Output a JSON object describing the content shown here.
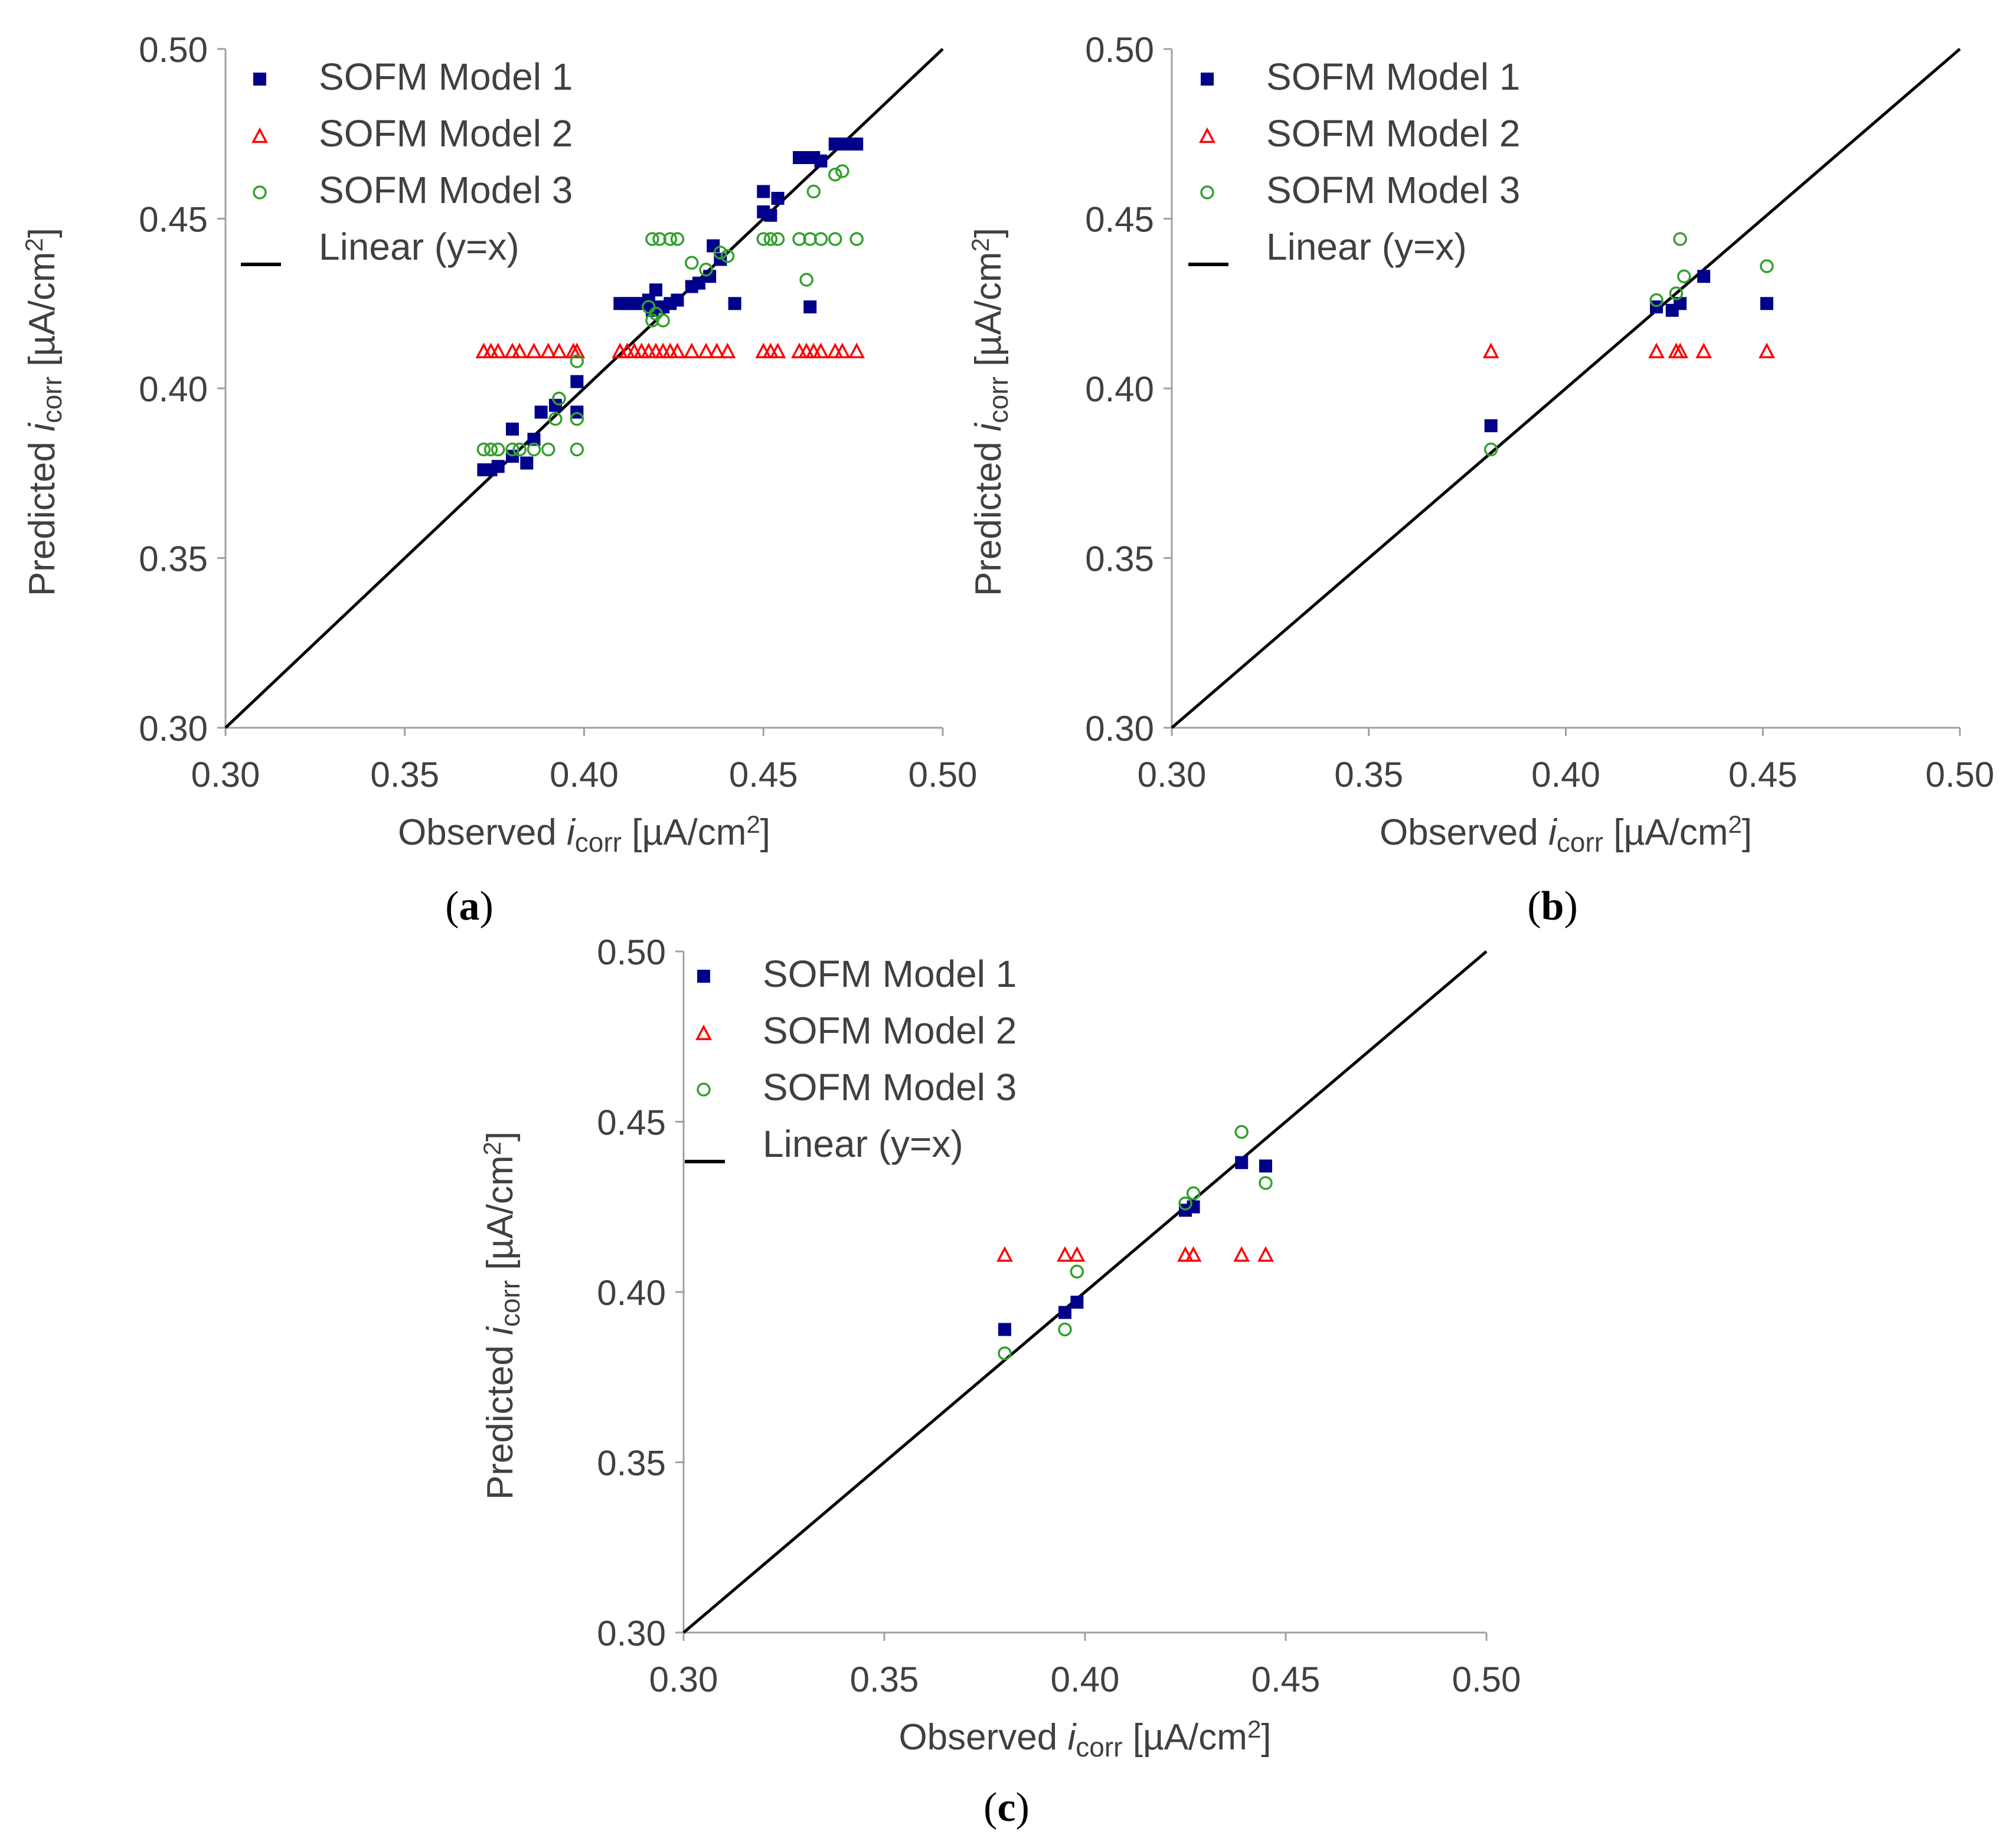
{
  "chart_data": [
    {
      "panel_label": "a",
      "type": "scatter",
      "xlabel": "Observed",
      "ylabel": "Predicted",
      "axis_symbol": "i",
      "axis_subscript": "corr",
      "axis_unit": "[µA/cm",
      "axis_unit_sup": "2",
      "axis_unit_close": "]",
      "xlim": [
        0.3,
        0.5
      ],
      "ylim": [
        0.3,
        0.5
      ],
      "x_ticks": [
        "0.30",
        "0.35",
        "0.40",
        "0.45",
        "0.50"
      ],
      "y_ticks": [
        "0.30",
        "0.35",
        "0.40",
        "0.45",
        "0.50"
      ],
      "legend": [
        "SOFM Model 1",
        "SOFM Model 2",
        "SOFM Model 3",
        "Linear (y=x)"
      ],
      "legend_position": "top-left",
      "reference_line": [
        [
          0.3,
          0.3
        ],
        [
          0.5,
          0.5
        ]
      ],
      "series": [
        {
          "name": "SOFM Model 1",
          "marker": "square",
          "color": "#00008b",
          "points": [
            [
              0.372,
              0.376
            ],
            [
              0.374,
              0.376
            ],
            [
              0.376,
              0.377
            ],
            [
              0.38,
              0.38
            ],
            [
              0.38,
              0.388
            ],
            [
              0.384,
              0.378
            ],
            [
              0.386,
              0.385
            ],
            [
              0.388,
              0.393
            ],
            [
              0.392,
              0.395
            ],
            [
              0.398,
              0.393
            ],
            [
              0.398,
              0.402
            ],
            [
              0.41,
              0.425
            ],
            [
              0.412,
              0.425
            ],
            [
              0.414,
              0.425
            ],
            [
              0.416,
              0.425
            ],
            [
              0.418,
              0.426
            ],
            [
              0.419,
              0.423
            ],
            [
              0.42,
              0.424
            ],
            [
              0.42,
              0.429
            ],
            [
              0.422,
              0.424
            ],
            [
              0.424,
              0.425
            ],
            [
              0.426,
              0.426
            ],
            [
              0.43,
              0.43
            ],
            [
              0.432,
              0.431
            ],
            [
              0.435,
              0.433
            ],
            [
              0.436,
              0.442
            ],
            [
              0.438,
              0.438
            ],
            [
              0.442,
              0.425
            ],
            [
              0.45,
              0.452
            ],
            [
              0.45,
              0.458
            ],
            [
              0.452,
              0.451
            ],
            [
              0.454,
              0.456
            ],
            [
              0.46,
              0.468
            ],
            [
              0.462,
              0.468
            ],
            [
              0.463,
              0.424
            ],
            [
              0.464,
              0.468
            ],
            [
              0.466,
              0.467
            ],
            [
              0.47,
              0.472
            ],
            [
              0.472,
              0.472
            ],
            [
              0.474,
              0.472
            ],
            [
              0.476,
              0.472
            ]
          ]
        },
        {
          "name": "SOFM Model 2",
          "marker": "triangle",
          "color": "#ff0000",
          "points": [
            [
              0.372,
              0.411
            ],
            [
              0.374,
              0.411
            ],
            [
              0.376,
              0.411
            ],
            [
              0.38,
              0.411
            ],
            [
              0.382,
              0.411
            ],
            [
              0.386,
              0.411
            ],
            [
              0.39,
              0.411
            ],
            [
              0.393,
              0.411
            ],
            [
              0.397,
              0.411
            ],
            [
              0.398,
              0.411
            ],
            [
              0.41,
              0.411
            ],
            [
              0.412,
              0.411
            ],
            [
              0.414,
              0.411
            ],
            [
              0.416,
              0.411
            ],
            [
              0.418,
              0.411
            ],
            [
              0.42,
              0.411
            ],
            [
              0.422,
              0.411
            ],
            [
              0.424,
              0.411
            ],
            [
              0.426,
              0.411
            ],
            [
              0.43,
              0.411
            ],
            [
              0.434,
              0.411
            ],
            [
              0.437,
              0.411
            ],
            [
              0.44,
              0.411
            ],
            [
              0.45,
              0.411
            ],
            [
              0.452,
              0.411
            ],
            [
              0.454,
              0.411
            ],
            [
              0.46,
              0.411
            ],
            [
              0.462,
              0.411
            ],
            [
              0.464,
              0.411
            ],
            [
              0.466,
              0.411
            ],
            [
              0.47,
              0.411
            ],
            [
              0.472,
              0.411
            ],
            [
              0.476,
              0.411
            ]
          ]
        },
        {
          "name": "SOFM Model 3",
          "marker": "circle",
          "color": "#33a02c",
          "points": [
            [
              0.372,
              0.382
            ],
            [
              0.374,
              0.382
            ],
            [
              0.376,
              0.382
            ],
            [
              0.38,
              0.382
            ],
            [
              0.382,
              0.382
            ],
            [
              0.386,
              0.382
            ],
            [
              0.39,
              0.382
            ],
            [
              0.392,
              0.391
            ],
            [
              0.393,
              0.397
            ],
            [
              0.398,
              0.382
            ],
            [
              0.398,
              0.391
            ],
            [
              0.398,
              0.408
            ],
            [
              0.418,
              0.424
            ],
            [
              0.419,
              0.42
            ],
            [
              0.419,
              0.444
            ],
            [
              0.42,
              0.422
            ],
            [
              0.421,
              0.444
            ],
            [
              0.422,
              0.42
            ],
            [
              0.424,
              0.444
            ],
            [
              0.426,
              0.444
            ],
            [
              0.43,
              0.437
            ],
            [
              0.434,
              0.435
            ],
            [
              0.438,
              0.44
            ],
            [
              0.44,
              0.439
            ],
            [
              0.45,
              0.444
            ],
            [
              0.452,
              0.444
            ],
            [
              0.454,
              0.444
            ],
            [
              0.46,
              0.444
            ],
            [
              0.462,
              0.432
            ],
            [
              0.463,
              0.444
            ],
            [
              0.464,
              0.458
            ],
            [
              0.466,
              0.444
            ],
            [
              0.47,
              0.444
            ],
            [
              0.47,
              0.463
            ],
            [
              0.472,
              0.464
            ],
            [
              0.476,
              0.444
            ]
          ]
        }
      ]
    },
    {
      "panel_label": "b",
      "type": "scatter",
      "xlabel": "Observed",
      "ylabel": "Predicted",
      "axis_symbol": "i",
      "axis_subscript": "corr",
      "axis_unit": "[µA/cm",
      "axis_unit_sup": "2",
      "axis_unit_close": "]",
      "xlim": [
        0.3,
        0.5
      ],
      "ylim": [
        0.3,
        0.5
      ],
      "x_ticks": [
        "0.30",
        "0.35",
        "0.40",
        "0.45",
        "0.50"
      ],
      "y_ticks": [
        "0.30",
        "0.35",
        "0.40",
        "0.45",
        "0.50"
      ],
      "legend": [
        "SOFM Model 1",
        "SOFM Model 2",
        "SOFM Model 3",
        "Linear (y=x)"
      ],
      "legend_position": "top-left",
      "reference_line": [
        [
          0.3,
          0.3
        ],
        [
          0.5,
          0.5
        ]
      ],
      "series": [
        {
          "name": "SOFM Model 1",
          "marker": "square",
          "color": "#00008b",
          "points": [
            [
              0.381,
              0.389
            ],
            [
              0.423,
              0.424
            ],
            [
              0.427,
              0.423
            ],
            [
              0.429,
              0.425
            ],
            [
              0.435,
              0.433
            ],
            [
              0.451,
              0.425
            ]
          ]
        },
        {
          "name": "SOFM Model 2",
          "marker": "triangle",
          "color": "#ff0000",
          "points": [
            [
              0.381,
              0.411
            ],
            [
              0.423,
              0.411
            ],
            [
              0.428,
              0.411
            ],
            [
              0.429,
              0.411
            ],
            [
              0.435,
              0.411
            ],
            [
              0.451,
              0.411
            ]
          ]
        },
        {
          "name": "SOFM Model 3",
          "marker": "circle",
          "color": "#33a02c",
          "points": [
            [
              0.381,
              0.382
            ],
            [
              0.423,
              0.426
            ],
            [
              0.428,
              0.428
            ],
            [
              0.429,
              0.444
            ],
            [
              0.43,
              0.433
            ],
            [
              0.451,
              0.436
            ]
          ]
        }
      ]
    },
    {
      "panel_label": "c",
      "type": "scatter",
      "xlabel": "Observed",
      "ylabel": "Predicted",
      "axis_symbol": "i",
      "axis_subscript": "corr",
      "axis_unit": "[µA/cm",
      "axis_unit_sup": "2",
      "axis_unit_close": "]",
      "xlim": [
        0.3,
        0.5
      ],
      "ylim": [
        0.3,
        0.5
      ],
      "x_ticks": [
        "0.30",
        "0.35",
        "0.40",
        "0.45",
        "0.50"
      ],
      "y_ticks": [
        "0.30",
        "0.35",
        "0.40",
        "0.45",
        "0.50"
      ],
      "legend": [
        "SOFM Model 1",
        "SOFM Model 2",
        "SOFM Model 3",
        "Linear (y=x)"
      ],
      "legend_position": "top-left",
      "reference_line": [
        [
          0.3,
          0.3
        ],
        [
          0.5,
          0.5
        ]
      ],
      "series": [
        {
          "name": "SOFM Model 1",
          "marker": "square",
          "color": "#00008b",
          "points": [
            [
              0.38,
              0.389
            ],
            [
              0.395,
              0.394
            ],
            [
              0.398,
              0.397
            ],
            [
              0.425,
              0.424
            ],
            [
              0.427,
              0.425
            ],
            [
              0.439,
              0.438
            ],
            [
              0.445,
              0.437
            ]
          ]
        },
        {
          "name": "SOFM Model 2",
          "marker": "triangle",
          "color": "#ff0000",
          "points": [
            [
              0.38,
              0.411
            ],
            [
              0.395,
              0.411
            ],
            [
              0.398,
              0.411
            ],
            [
              0.425,
              0.411
            ],
            [
              0.427,
              0.411
            ],
            [
              0.439,
              0.411
            ],
            [
              0.445,
              0.411
            ]
          ]
        },
        {
          "name": "SOFM Model 3",
          "marker": "circle",
          "color": "#33a02c",
          "points": [
            [
              0.38,
              0.382
            ],
            [
              0.395,
              0.389
            ],
            [
              0.398,
              0.406
            ],
            [
              0.425,
              0.426
            ],
            [
              0.427,
              0.429
            ],
            [
              0.439,
              0.447
            ],
            [
              0.445,
              0.432
            ]
          ]
        }
      ]
    }
  ]
}
